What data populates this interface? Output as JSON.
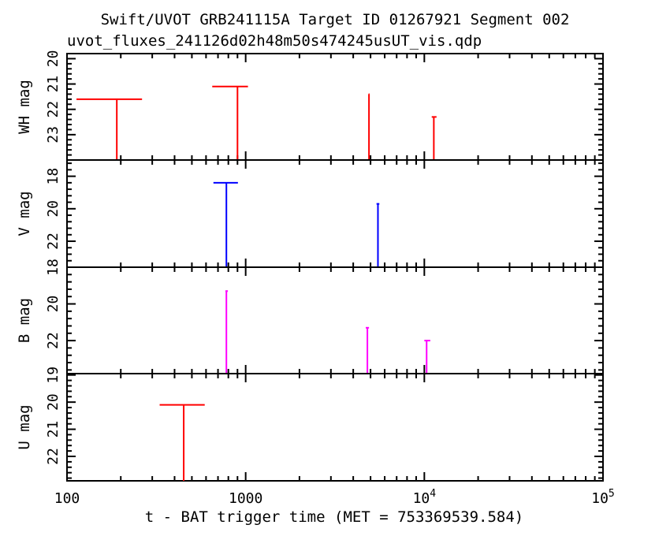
{
  "chart_data": {
    "type": "scatter",
    "title": "Swift/UVOT GRB241115A Target ID 01267921 Segment 002",
    "subtitle": "uvot_fluxes_241126d02h48m50s474245usUT_vis.qdp",
    "xlabel": "t - BAT trigger time (MET = 753369539.584)",
    "x_scale": "log",
    "xlim": [
      100,
      100000
    ],
    "x_ticks": [
      {
        "value": 100,
        "label": "100",
        "sup": ""
      },
      {
        "value": 1000,
        "label": "1000",
        "sup": ""
      },
      {
        "value": 10000,
        "label": "10",
        "sup": "4"
      },
      {
        "value": 100000,
        "label": "10",
        "sup": "5"
      }
    ],
    "panels": [
      {
        "ylabel": "WH mag",
        "ylim": [
          19.8,
          24.0
        ],
        "y_ticks": [
          20,
          21,
          22,
          23
        ],
        "color": "#ff0000",
        "points": [
          {
            "t": 190,
            "t_lo": 113,
            "t_hi": 263,
            "mag": 21.6
          },
          {
            "t": 900,
            "t_lo": 650,
            "t_hi": 1030,
            "mag": 21.1
          },
          {
            "t": 4900,
            "t_lo": 4880,
            "t_hi": 4930,
            "mag": 21.4
          },
          {
            "t": 11300,
            "t_lo": 11000,
            "t_hi": 11700,
            "mag": 22.3
          }
        ]
      },
      {
        "ylabel": "V mag",
        "ylim": [
          17.0,
          23.6
        ],
        "y_ticks": [
          18,
          20,
          22
        ],
        "color": "#0000ff",
        "points": [
          {
            "t": 780,
            "t_lo": 660,
            "t_hi": 905,
            "mag": 18.4
          },
          {
            "t": 5500,
            "t_lo": 5400,
            "t_hi": 5600,
            "mag": 19.7
          }
        ]
      },
      {
        "ylabel": "B mag",
        "ylim": [
          18.0,
          23.8
        ],
        "y_ticks": [
          18,
          20,
          22
        ],
        "color": "#ff00ff",
        "points": [
          {
            "t": 780,
            "t_lo": 770,
            "t_hi": 795,
            "mag": 19.3
          },
          {
            "t": 4800,
            "t_lo": 4700,
            "t_hi": 4900,
            "mag": 21.3
          },
          {
            "t": 10300,
            "t_lo": 10000,
            "t_hi": 10800,
            "mag": 22.0
          }
        ]
      },
      {
        "ylabel": "U mag",
        "ylim": [
          18.95,
          22.9
        ],
        "y_ticks": [
          19,
          20,
          21,
          22
        ],
        "color": "#ff0000",
        "points": [
          {
            "t": 450,
            "t_lo": 330,
            "t_hi": 590,
            "mag": 20.1
          }
        ]
      }
    ]
  }
}
